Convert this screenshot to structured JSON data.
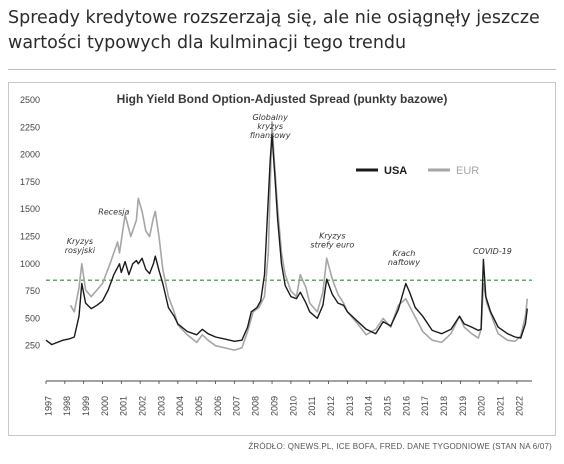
{
  "headline": "Spready kredytowe rozszerzają się, ale nie osiągnęły jeszcze wartości typowych dla kulminacji tego trendu",
  "source": "ŹRÓDŁO: QNEWS.PL, ICE BOFA, FRED. DANE TYGODNIOWE (STAN NA 6/07)",
  "chart_data": {
    "type": "line",
    "title": "High Yield Bond Option-Adjusted Spread (punkty bazowe)",
    "xlabel": "",
    "ylabel": "",
    "ylim": [
      0,
      2500
    ],
    "xlim": [
      1997,
      2022.8
    ],
    "yticks": [
      250,
      500,
      750,
      1000,
      1250,
      1500,
      1750,
      2000,
      2250,
      2500
    ],
    "xticks": [
      1997,
      1998,
      1999,
      2000,
      2001,
      2002,
      2003,
      2004,
      2005,
      2006,
      2007,
      2008,
      2009,
      2010,
      2011,
      2012,
      2013,
      2014,
      2015,
      2016,
      2017,
      2018,
      2019,
      2020,
      2021,
      2022
    ],
    "grid": false,
    "legend": "top-right",
    "colors": {
      "USA": "#1a1a1a",
      "EUR": "#a6a6a6",
      "reference_line": "#2e8b3a"
    },
    "reference_line": 850,
    "series": [
      {
        "name": "USA",
        "x": [
          1997.0,
          1997.3,
          1997.6,
          1997.9,
          1998.2,
          1998.5,
          1998.75,
          1998.9,
          1999.1,
          1999.4,
          1999.7,
          2000.0,
          2000.3,
          2000.6,
          2000.9,
          2001.0,
          2001.2,
          2001.4,
          2001.6,
          2001.8,
          2001.9,
          2002.1,
          2002.3,
          2002.5,
          2002.7,
          2002.8,
          2003.0,
          2003.2,
          2003.5,
          2003.8,
          2004.0,
          2004.5,
          2005.0,
          2005.3,
          2005.6,
          2006.0,
          2006.5,
          2007.0,
          2007.4,
          2007.7,
          2007.9,
          2008.2,
          2008.4,
          2008.6,
          2008.8,
          2008.9,
          2009.0,
          2009.15,
          2009.3,
          2009.5,
          2009.7,
          2010.0,
          2010.3,
          2010.5,
          2010.8,
          2011.0,
          2011.4,
          2011.7,
          2011.9,
          2012.2,
          2012.5,
          2012.8,
          2013.0,
          2013.5,
          2014.0,
          2014.5,
          2014.9,
          2015.3,
          2015.7,
          2015.9,
          2016.1,
          2016.3,
          2016.6,
          2017.0,
          2017.5,
          2018.0,
          2018.5,
          2018.95,
          2019.2,
          2019.6,
          2019.95,
          2020.1,
          2020.22,
          2020.35,
          2020.6,
          2021.0,
          2021.5,
          2021.9,
          2022.2,
          2022.45,
          2022.55
        ],
        "values": [
          300,
          260,
          280,
          300,
          310,
          330,
          520,
          820,
          640,
          590,
          620,
          660,
          760,
          900,
          1000,
          920,
          1020,
          900,
          1000,
          1030,
          1000,
          1050,
          950,
          910,
          1000,
          1070,
          940,
          820,
          600,
          520,
          450,
          380,
          350,
          400,
          360,
          330,
          310,
          290,
          300,
          420,
          560,
          600,
          660,
          900,
          1600,
          1950,
          2180,
          1800,
          1400,
          1000,
          800,
          700,
          680,
          740,
          640,
          560,
          500,
          620,
          860,
          720,
          640,
          620,
          560,
          480,
          400,
          360,
          470,
          430,
          580,
          700,
          820,
          740,
          600,
          520,
          390,
          360,
          400,
          520,
          450,
          420,
          390,
          400,
          1040,
          700,
          560,
          420,
          360,
          330,
          320,
          450,
          590
        ]
      },
      {
        "name": "EUR",
        "x": [
          1998.3,
          1998.5,
          1998.75,
          1998.9,
          1999.1,
          1999.4,
          1999.7,
          2000.0,
          2000.4,
          2000.8,
          2000.9,
          2001.2,
          2001.5,
          2001.8,
          2001.9,
          2002.1,
          2002.3,
          2002.5,
          2002.7,
          2002.8,
          2003.0,
          2003.2,
          2003.5,
          2003.8,
          2004.0,
          2004.5,
          2005.0,
          2005.3,
          2005.6,
          2006.0,
          2006.5,
          2007.0,
          2007.4,
          2007.7,
          2008.0,
          2008.3,
          2008.6,
          2008.8,
          2008.92,
          2009.0,
          2009.1,
          2009.3,
          2009.5,
          2009.7,
          2010.0,
          2010.3,
          2010.5,
          2010.8,
          2011.0,
          2011.4,
          2011.7,
          2011.9,
          2012.2,
          2012.5,
          2012.8,
          2013.0,
          2013.5,
          2014.0,
          2014.5,
          2014.9,
          2015.3,
          2015.7,
          2016.1,
          2016.4,
          2016.7,
          2017.0,
          2017.5,
          2018.0,
          2018.5,
          2018.95,
          2019.2,
          2019.6,
          2019.95,
          2020.1,
          2020.22,
          2020.4,
          2020.7,
          2021.0,
          2021.5,
          2021.9,
          2022.2,
          2022.45,
          2022.55
        ],
        "values": [
          620,
          560,
          780,
          1000,
          760,
          700,
          760,
          820,
          1000,
          1200,
          1100,
          1450,
          1250,
          1400,
          1600,
          1480,
          1300,
          1250,
          1420,
          1480,
          1250,
          950,
          700,
          560,
          440,
          350,
          280,
          350,
          300,
          250,
          230,
          210,
          230,
          380,
          560,
          600,
          700,
          1100,
          1800,
          2300,
          2000,
          1500,
          1100,
          900,
          750,
          700,
          900,
          780,
          640,
          560,
          740,
          1050,
          860,
          720,
          640,
          560,
          460,
          350,
          400,
          500,
          420,
          620,
          680,
          580,
          480,
          380,
          300,
          280,
          360,
          520,
          420,
          360,
          320,
          400,
          820,
          640,
          500,
          360,
          300,
          290,
          340,
          520,
          680
        ]
      }
    ],
    "annotations": [
      {
        "lines": [
          "Kryzys",
          "rosyjski"
        ],
        "x": 1998.8,
        "y": 1100
      },
      {
        "lines": [
          "Recesja"
        ],
        "x": 2000.6,
        "y": 1450
      },
      {
        "lines": [
          "Globalny",
          "kryzys",
          "finansowy"
        ],
        "x": 2008.9,
        "y": 2150
      },
      {
        "lines": [
          "Kryzys",
          "strefy euro"
        ],
        "x": 2012.2,
        "y": 1150
      },
      {
        "lines": [
          "Krach",
          "naftowy"
        ],
        "x": 2016.0,
        "y": 990
      },
      {
        "lines": [
          "COVID-19"
        ],
        "x": 2020.7,
        "y": 1090
      }
    ]
  }
}
